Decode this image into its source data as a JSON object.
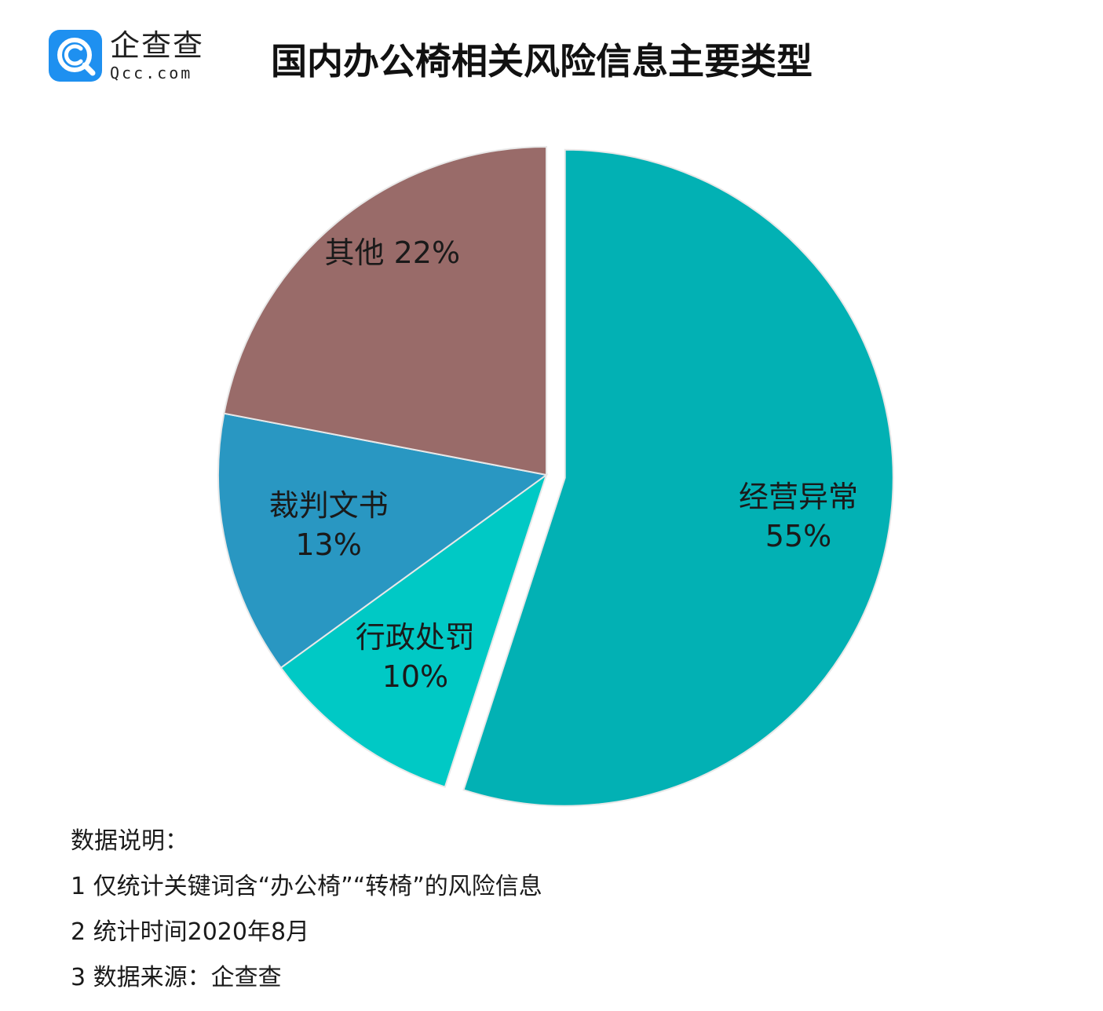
{
  "brand": {
    "name_cn": "企查查",
    "name_en": "Qcc.com",
    "icon": "magnifier-c-icon",
    "color": "#1e90f0"
  },
  "title": "国内办公椅相关风险信息主要类型",
  "chart_data": {
    "type": "pie",
    "title": "国内办公椅相关风险信息主要类型",
    "start_angle": "12 o'clock, clockwise",
    "slices": [
      {
        "label": "经营异常",
        "value": 55,
        "display": "55%",
        "color": "#02b1b4",
        "exploded": true
      },
      {
        "label": "行政处罚",
        "value": 10,
        "display": "10%",
        "color": "#00c9c5",
        "exploded": false
      },
      {
        "label": "裁判文书",
        "value": 13,
        "display": "13%",
        "color": "#2997c2",
        "exploded": false
      },
      {
        "label": "其他",
        "value": 22,
        "display": "22%",
        "color": "#996b69",
        "exploded": false
      }
    ]
  },
  "notes": {
    "heading": "数据说明：",
    "lines": [
      "1 仅统计关键词含“办公椅”“转椅”的风险信息",
      "2 统计时间2020年8月",
      "3 数据来源：企查查"
    ]
  }
}
